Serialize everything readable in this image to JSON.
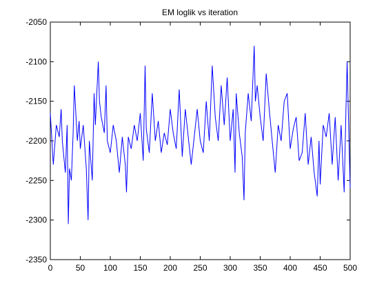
{
  "chart_data": {
    "type": "line",
    "title": "EM loglik vs iteration",
    "xlabel": "",
    "ylabel": "",
    "xlim": [
      0,
      500
    ],
    "ylim": [
      -2350,
      -2050
    ],
    "xticks": [
      0,
      50,
      100,
      150,
      200,
      250,
      300,
      350,
      400,
      450,
      500
    ],
    "yticks": [
      -2050,
      -2100,
      -2150,
      -2200,
      -2250,
      -2300,
      -2350
    ],
    "grid": false,
    "line_color": "#0000ff",
    "series": [
      {
        "x": [
          0,
          5,
          10,
          15,
          18,
          20,
          25,
          28,
          30,
          32,
          35,
          38,
          40,
          45,
          48,
          50,
          55,
          60,
          63,
          65,
          70,
          73,
          75,
          80,
          82,
          85,
          90,
          93,
          95,
          100,
          105,
          110,
          115,
          120,
          125,
          127,
          130,
          135,
          140,
          145,
          150,
          155,
          158,
          160,
          165,
          170,
          175,
          180,
          185,
          190,
          195,
          200,
          205,
          210,
          215,
          220,
          225,
          230,
          235,
          240,
          245,
          250,
          255,
          260,
          265,
          270,
          275,
          280,
          285,
          290,
          295,
          300,
          305,
          308,
          310,
          315,
          320,
          323,
          325,
          330,
          335,
          340,
          342,
          345,
          350,
          355,
          360,
          365,
          370,
          375,
          380,
          385,
          390,
          395,
          400,
          405,
          410,
          415,
          420,
          425,
          430,
          435,
          440,
          445,
          448,
          450,
          455,
          460,
          465,
          470,
          475,
          480,
          485,
          490,
          493,
          495,
          500
        ],
        "values": [
          -2165,
          -2230,
          -2180,
          -2195,
          -2160,
          -2200,
          -2240,
          -2180,
          -2305,
          -2235,
          -2250,
          -2190,
          -2130,
          -2200,
          -2175,
          -2210,
          -2180,
          -2235,
          -2300,
          -2200,
          -2250,
          -2140,
          -2180,
          -2100,
          -2150,
          -2170,
          -2190,
          -2130,
          -2200,
          -2215,
          -2180,
          -2200,
          -2240,
          -2195,
          -2230,
          -2265,
          -2195,
          -2210,
          -2180,
          -2200,
          -2165,
          -2225,
          -2105,
          -2185,
          -2215,
          -2140,
          -2200,
          -2175,
          -2215,
          -2190,
          -2205,
          -2160,
          -2190,
          -2210,
          -2135,
          -2220,
          -2160,
          -2195,
          -2230,
          -2195,
          -2160,
          -2200,
          -2215,
          -2150,
          -2200,
          -2105,
          -2170,
          -2200,
          -2130,
          -2180,
          -2120,
          -2200,
          -2160,
          -2240,
          -2140,
          -2190,
          -2220,
          -2275,
          -2190,
          -2140,
          -2175,
          -2080,
          -2150,
          -2130,
          -2170,
          -2200,
          -2115,
          -2160,
          -2200,
          -2240,
          -2180,
          -2200,
          -2150,
          -2140,
          -2210,
          -2185,
          -2170,
          -2225,
          -2215,
          -2165,
          -2230,
          -2195,
          -2240,
          -2270,
          -2200,
          -2255,
          -2180,
          -2195,
          -2165,
          -2230,
          -2170,
          -2250,
          -2180,
          -2265,
          -2160,
          -2100,
          -2260
        ]
      }
    ]
  }
}
